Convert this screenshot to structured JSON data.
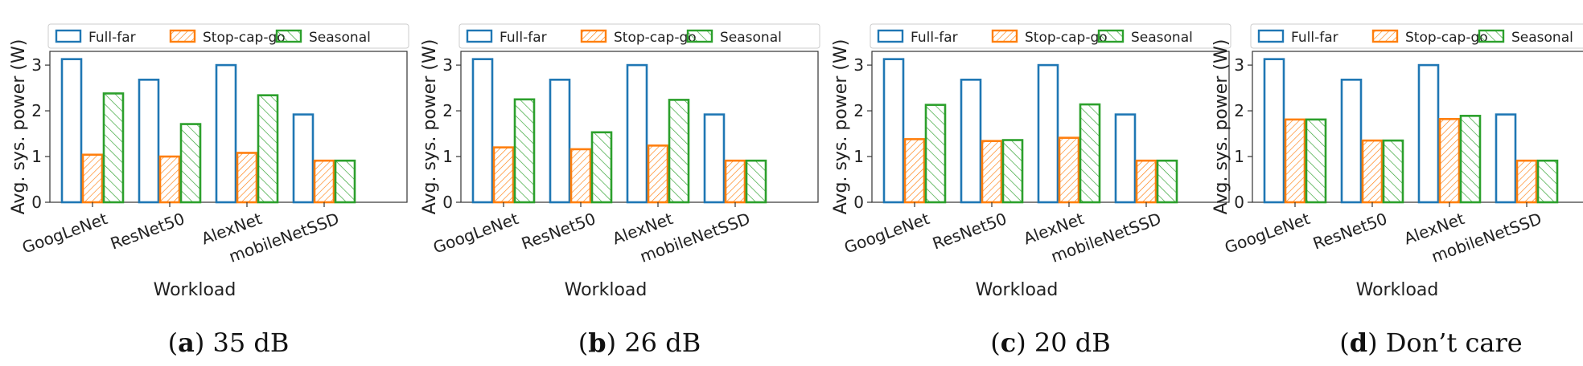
{
  "chart_data": [
    {
      "type": "bar",
      "panel": "a",
      "caption_label": "a",
      "caption_text": "35 dB",
      "categories": [
        "GoogLeNet",
        "ResNet50",
        "AlexNet",
        "mobileNetSSD"
      ],
      "series": [
        {
          "name": "Full-far",
          "color": "#1f77b4",
          "hatch": "none",
          "values": [
            3.13,
            2.68,
            3.0,
            1.92
          ]
        },
        {
          "name": "Stop-cap-go",
          "color": "#ff7f0e",
          "hatch": "dense",
          "values": [
            1.04,
            1.0,
            1.08,
            0.91
          ]
        },
        {
          "name": "Seasonal",
          "color": "#2ca02c",
          "hatch": "sparse",
          "values": [
            2.38,
            1.71,
            2.34,
            0.91
          ]
        }
      ],
      "xlabel": "Workload",
      "ylabel": "Avg. sys. power (W)",
      "ylim": [
        0,
        3.3
      ],
      "yticks": [
        0,
        1,
        2,
        3
      ],
      "legend": "top"
    },
    {
      "type": "bar",
      "panel": "b",
      "caption_label": "b",
      "caption_text": "26 dB",
      "categories": [
        "GoogLeNet",
        "ResNet50",
        "AlexNet",
        "mobileNetSSD"
      ],
      "series": [
        {
          "name": "Full-far",
          "color": "#1f77b4",
          "hatch": "none",
          "values": [
            3.13,
            2.68,
            3.0,
            1.92
          ]
        },
        {
          "name": "Stop-cap-go",
          "color": "#ff7f0e",
          "hatch": "dense",
          "values": [
            1.2,
            1.16,
            1.24,
            0.91
          ]
        },
        {
          "name": "Seasonal",
          "color": "#2ca02c",
          "hatch": "sparse",
          "values": [
            2.25,
            1.53,
            2.24,
            0.91
          ]
        }
      ],
      "xlabel": "Workload",
      "ylabel": "Avg. sys. power (W)",
      "ylim": [
        0,
        3.3
      ],
      "yticks": [
        0,
        1,
        2,
        3
      ],
      "legend": "top"
    },
    {
      "type": "bar",
      "panel": "c",
      "caption_label": "c",
      "caption_text": "20 dB",
      "categories": [
        "GoogLeNet",
        "ResNet50",
        "AlexNet",
        "mobileNetSSD"
      ],
      "series": [
        {
          "name": "Full-far",
          "color": "#1f77b4",
          "hatch": "none",
          "values": [
            3.13,
            2.68,
            3.0,
            1.92
          ]
        },
        {
          "name": "Stop-cap-go",
          "color": "#ff7f0e",
          "hatch": "dense",
          "values": [
            1.38,
            1.34,
            1.41,
            0.91
          ]
        },
        {
          "name": "Seasonal",
          "color": "#2ca02c",
          "hatch": "sparse",
          "values": [
            2.13,
            1.36,
            2.14,
            0.91
          ]
        }
      ],
      "xlabel": "Workload",
      "ylabel": "Avg. sys. power (W)",
      "ylim": [
        0,
        3.3
      ],
      "yticks": [
        0,
        1,
        2,
        3
      ],
      "legend": "top"
    },
    {
      "type": "bar",
      "panel": "d",
      "caption_label": "d",
      "caption_text": "Don’t care",
      "categories": [
        "GoogLeNet",
        "ResNet50",
        "AlexNet",
        "mobileNetSSD"
      ],
      "series": [
        {
          "name": "Full-far",
          "color": "#1f77b4",
          "hatch": "none",
          "values": [
            3.13,
            2.68,
            3.0,
            1.92
          ]
        },
        {
          "name": "Stop-cap-go",
          "color": "#ff7f0e",
          "hatch": "dense",
          "values": [
            1.81,
            1.35,
            1.82,
            0.91
          ]
        },
        {
          "name": "Seasonal",
          "color": "#2ca02c",
          "hatch": "sparse",
          "values": [
            1.81,
            1.35,
            1.89,
            0.91
          ]
        }
      ],
      "xlabel": "Workload",
      "ylabel": "Avg. sys. power (W)",
      "ylim": [
        0,
        3.3
      ],
      "yticks": [
        0,
        1,
        2,
        3
      ],
      "legend": "top"
    }
  ]
}
